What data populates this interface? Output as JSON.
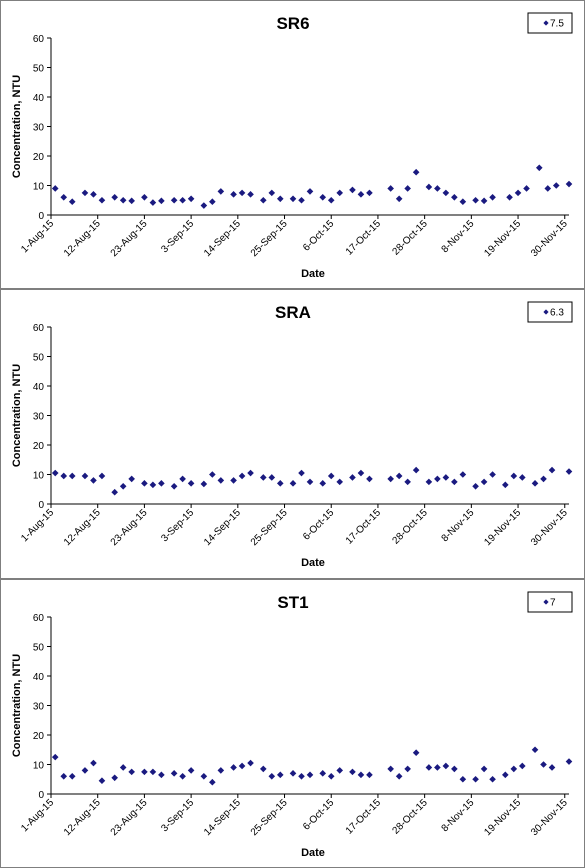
{
  "chart_data": [
    {
      "type": "scatter",
      "title": "SR6",
      "xlabel": "Date",
      "ylabel": "Concentration, NTU",
      "xlim": [
        "2015-08-01",
        "2015-12-01"
      ],
      "ylim": [
        0,
        60
      ],
      "yticks": [
        0,
        10,
        20,
        30,
        40,
        50,
        60
      ],
      "xticks": [
        "1-Aug-15",
        "12-Aug-15",
        "23-Aug-15",
        "3-Sep-15",
        "14-Sep-15",
        "25-Sep-15",
        "6-Oct-15",
        "17-Oct-15",
        "28-Oct-15",
        "8-Nov-15",
        "19-Nov-15",
        "30-Nov-15"
      ],
      "legend_position": "top-right",
      "marker_color": "#1a1a80",
      "series": [
        {
          "name": "7.5",
          "points": [
            {
              "x": "2015-08-02",
              "y": 9
            },
            {
              "x": "2015-08-04",
              "y": 6
            },
            {
              "x": "2015-08-06",
              "y": 4.5
            },
            {
              "x": "2015-08-09",
              "y": 7.5
            },
            {
              "x": "2015-08-11",
              "y": 7
            },
            {
              "x": "2015-08-13",
              "y": 5
            },
            {
              "x": "2015-08-16",
              "y": 6
            },
            {
              "x": "2015-08-18",
              "y": 5
            },
            {
              "x": "2015-08-20",
              "y": 4.8
            },
            {
              "x": "2015-08-23",
              "y": 6
            },
            {
              "x": "2015-08-25",
              "y": 4.2
            },
            {
              "x": "2015-08-27",
              "y": 4.8
            },
            {
              "x": "2015-08-30",
              "y": 5
            },
            {
              "x": "2015-09-01",
              "y": 5
            },
            {
              "x": "2015-09-03",
              "y": 5.5
            },
            {
              "x": "2015-09-06",
              "y": 3.2
            },
            {
              "x": "2015-09-08",
              "y": 4.5
            },
            {
              "x": "2015-09-10",
              "y": 8
            },
            {
              "x": "2015-09-13",
              "y": 7
            },
            {
              "x": "2015-09-15",
              "y": 7.5
            },
            {
              "x": "2015-09-17",
              "y": 7
            },
            {
              "x": "2015-09-20",
              "y": 5
            },
            {
              "x": "2015-09-22",
              "y": 7.5
            },
            {
              "x": "2015-09-24",
              "y": 5.5
            },
            {
              "x": "2015-09-27",
              "y": 5.5
            },
            {
              "x": "2015-09-29",
              "y": 5
            },
            {
              "x": "2015-10-01",
              "y": 8
            },
            {
              "x": "2015-10-04",
              "y": 6
            },
            {
              "x": "2015-10-06",
              "y": 5
            },
            {
              "x": "2015-10-08",
              "y": 7.5
            },
            {
              "x": "2015-10-11",
              "y": 8.5
            },
            {
              "x": "2015-10-13",
              "y": 7
            },
            {
              "x": "2015-10-15",
              "y": 7.5
            },
            {
              "x": "2015-10-20",
              "y": 9
            },
            {
              "x": "2015-10-22",
              "y": 5.5
            },
            {
              "x": "2015-10-24",
              "y": 9
            },
            {
              "x": "2015-10-26",
              "y": 14.5
            },
            {
              "x": "2015-10-29",
              "y": 9.5
            },
            {
              "x": "2015-10-31",
              "y": 9
            },
            {
              "x": "2015-11-02",
              "y": 7.5
            },
            {
              "x": "2015-11-04",
              "y": 6
            },
            {
              "x": "2015-11-06",
              "y": 4.5
            },
            {
              "x": "2015-11-09",
              "y": 5
            },
            {
              "x": "2015-11-11",
              "y": 4.8
            },
            {
              "x": "2015-11-13",
              "y": 6
            },
            {
              "x": "2015-11-17",
              "y": 6
            },
            {
              "x": "2015-11-19",
              "y": 7.5
            },
            {
              "x": "2015-11-21",
              "y": 9
            },
            {
              "x": "2015-11-24",
              "y": 16
            },
            {
              "x": "2015-11-26",
              "y": 9
            },
            {
              "x": "2015-11-28",
              "y": 10
            },
            {
              "x": "2015-12-01",
              "y": 10.5
            }
          ]
        }
      ]
    },
    {
      "type": "scatter",
      "title": "SRA",
      "xlabel": "Date",
      "ylabel": "Concentration, NTU",
      "xlim": [
        "2015-08-01",
        "2015-12-01"
      ],
      "ylim": [
        0,
        60
      ],
      "yticks": [
        0,
        10,
        20,
        30,
        40,
        50,
        60
      ],
      "xticks": [
        "1-Aug-15",
        "12-Aug-15",
        "23-Aug-15",
        "3-Sep-15",
        "14-Sep-15",
        "25-Sep-15",
        "6-Oct-15",
        "17-Oct-15",
        "28-Oct-15",
        "8-Nov-15",
        "19-Nov-15",
        "30-Nov-15"
      ],
      "legend_position": "top-right",
      "marker_color": "#1a1a80",
      "series": [
        {
          "name": "6.3",
          "points": [
            {
              "x": "2015-08-02",
              "y": 10.5
            },
            {
              "x": "2015-08-04",
              "y": 9.5
            },
            {
              "x": "2015-08-06",
              "y": 9.5
            },
            {
              "x": "2015-08-09",
              "y": 9.5
            },
            {
              "x": "2015-08-11",
              "y": 8
            },
            {
              "x": "2015-08-13",
              "y": 9.5
            },
            {
              "x": "2015-08-16",
              "y": 4
            },
            {
              "x": "2015-08-18",
              "y": 6
            },
            {
              "x": "2015-08-20",
              "y": 8.5
            },
            {
              "x": "2015-08-23",
              "y": 7
            },
            {
              "x": "2015-08-25",
              "y": 6.5
            },
            {
              "x": "2015-08-27",
              "y": 7
            },
            {
              "x": "2015-08-30",
              "y": 6
            },
            {
              "x": "2015-09-01",
              "y": 8.5
            },
            {
              "x": "2015-09-03",
              "y": 7
            },
            {
              "x": "2015-09-06",
              "y": 6.8
            },
            {
              "x": "2015-09-08",
              "y": 10
            },
            {
              "x": "2015-09-10",
              "y": 8
            },
            {
              "x": "2015-09-13",
              "y": 8
            },
            {
              "x": "2015-09-15",
              "y": 9.5
            },
            {
              "x": "2015-09-17",
              "y": 10.5
            },
            {
              "x": "2015-09-20",
              "y": 9
            },
            {
              "x": "2015-09-22",
              "y": 9
            },
            {
              "x": "2015-09-24",
              "y": 7
            },
            {
              "x": "2015-09-27",
              "y": 7
            },
            {
              "x": "2015-09-29",
              "y": 10.5
            },
            {
              "x": "2015-10-01",
              "y": 7.5
            },
            {
              "x": "2015-10-04",
              "y": 7
            },
            {
              "x": "2015-10-06",
              "y": 9.5
            },
            {
              "x": "2015-10-08",
              "y": 7.5
            },
            {
              "x": "2015-10-11",
              "y": 9
            },
            {
              "x": "2015-10-13",
              "y": 10.5
            },
            {
              "x": "2015-10-15",
              "y": 8.5
            },
            {
              "x": "2015-10-20",
              "y": 8.5
            },
            {
              "x": "2015-10-22",
              "y": 9.5
            },
            {
              "x": "2015-10-24",
              "y": 7.5
            },
            {
              "x": "2015-10-26",
              "y": 11.5
            },
            {
              "x": "2015-10-29",
              "y": 7.5
            },
            {
              "x": "2015-10-31",
              "y": 8.5
            },
            {
              "x": "2015-11-02",
              "y": 9
            },
            {
              "x": "2015-11-04",
              "y": 7.5
            },
            {
              "x": "2015-11-06",
              "y": 10
            },
            {
              "x": "2015-11-09",
              "y": 6
            },
            {
              "x": "2015-11-11",
              "y": 7.5
            },
            {
              "x": "2015-11-13",
              "y": 10
            },
            {
              "x": "2015-11-16",
              "y": 6.5
            },
            {
              "x": "2015-11-18",
              "y": 9.5
            },
            {
              "x": "2015-11-20",
              "y": 9
            },
            {
              "x": "2015-11-23",
              "y": 7
            },
            {
              "x": "2015-11-25",
              "y": 8.5
            },
            {
              "x": "2015-11-27",
              "y": 11.5
            },
            {
              "x": "2015-12-01",
              "y": 11
            }
          ]
        }
      ]
    },
    {
      "type": "scatter",
      "title": "ST1",
      "xlabel": "Date",
      "ylabel": "Concentration, NTU",
      "xlim": [
        "2015-08-01",
        "2015-12-01"
      ],
      "ylim": [
        0,
        60
      ],
      "yticks": [
        0,
        10,
        20,
        30,
        40,
        50,
        60
      ],
      "xticks": [
        "1-Aug-15",
        "12-Aug-15",
        "23-Aug-15",
        "3-Sep-15",
        "14-Sep-15",
        "25-Sep-15",
        "6-Oct-15",
        "17-Oct-15",
        "28-Oct-15",
        "8-Nov-15",
        "19-Nov-15",
        "30-Nov-15"
      ],
      "legend_position": "top-right",
      "marker_color": "#1a1a80",
      "series": [
        {
          "name": "7",
          "points": [
            {
              "x": "2015-08-02",
              "y": 12.5
            },
            {
              "x": "2015-08-04",
              "y": 6
            },
            {
              "x": "2015-08-06",
              "y": 6
            },
            {
              "x": "2015-08-09",
              "y": 8
            },
            {
              "x": "2015-08-11",
              "y": 10.5
            },
            {
              "x": "2015-08-13",
              "y": 4.5
            },
            {
              "x": "2015-08-16",
              "y": 5.5
            },
            {
              "x": "2015-08-18",
              "y": 9
            },
            {
              "x": "2015-08-20",
              "y": 7.5
            },
            {
              "x": "2015-08-23",
              "y": 7.5
            },
            {
              "x": "2015-08-25",
              "y": 7.5
            },
            {
              "x": "2015-08-27",
              "y": 6.5
            },
            {
              "x": "2015-08-30",
              "y": 7
            },
            {
              "x": "2015-09-01",
              "y": 6
            },
            {
              "x": "2015-09-03",
              "y": 8
            },
            {
              "x": "2015-09-06",
              "y": 6
            },
            {
              "x": "2015-09-08",
              "y": 4
            },
            {
              "x": "2015-09-10",
              "y": 8
            },
            {
              "x": "2015-09-13",
              "y": 9
            },
            {
              "x": "2015-09-15",
              "y": 9.5
            },
            {
              "x": "2015-09-17",
              "y": 10.5
            },
            {
              "x": "2015-09-20",
              "y": 8.5
            },
            {
              "x": "2015-09-22",
              "y": 6
            },
            {
              "x": "2015-09-24",
              "y": 6.5
            },
            {
              "x": "2015-09-27",
              "y": 7
            },
            {
              "x": "2015-09-29",
              "y": 6
            },
            {
              "x": "2015-10-01",
              "y": 6.5
            },
            {
              "x": "2015-10-04",
              "y": 7
            },
            {
              "x": "2015-10-06",
              "y": 6
            },
            {
              "x": "2015-10-08",
              "y": 8
            },
            {
              "x": "2015-10-11",
              "y": 7.5
            },
            {
              "x": "2015-10-13",
              "y": 6.5
            },
            {
              "x": "2015-10-15",
              "y": 6.5
            },
            {
              "x": "2015-10-20",
              "y": 8.5
            },
            {
              "x": "2015-10-22",
              "y": 6
            },
            {
              "x": "2015-10-24",
              "y": 8.5
            },
            {
              "x": "2015-10-26",
              "y": 14
            },
            {
              "x": "2015-10-29",
              "y": 9
            },
            {
              "x": "2015-10-31",
              "y": 9
            },
            {
              "x": "2015-11-02",
              "y": 9.5
            },
            {
              "x": "2015-11-04",
              "y": 8.5
            },
            {
              "x": "2015-11-06",
              "y": 5
            },
            {
              "x": "2015-11-09",
              "y": 5
            },
            {
              "x": "2015-11-11",
              "y": 8.5
            },
            {
              "x": "2015-11-13",
              "y": 5
            },
            {
              "x": "2015-11-16",
              "y": 6.5
            },
            {
              "x": "2015-11-18",
              "y": 8.5
            },
            {
              "x": "2015-11-20",
              "y": 9.5
            },
            {
              "x": "2015-11-23",
              "y": 15
            },
            {
              "x": "2015-11-25",
              "y": 10
            },
            {
              "x": "2015-11-27",
              "y": 9
            },
            {
              "x": "2015-12-01",
              "y": 11
            }
          ]
        }
      ]
    }
  ]
}
